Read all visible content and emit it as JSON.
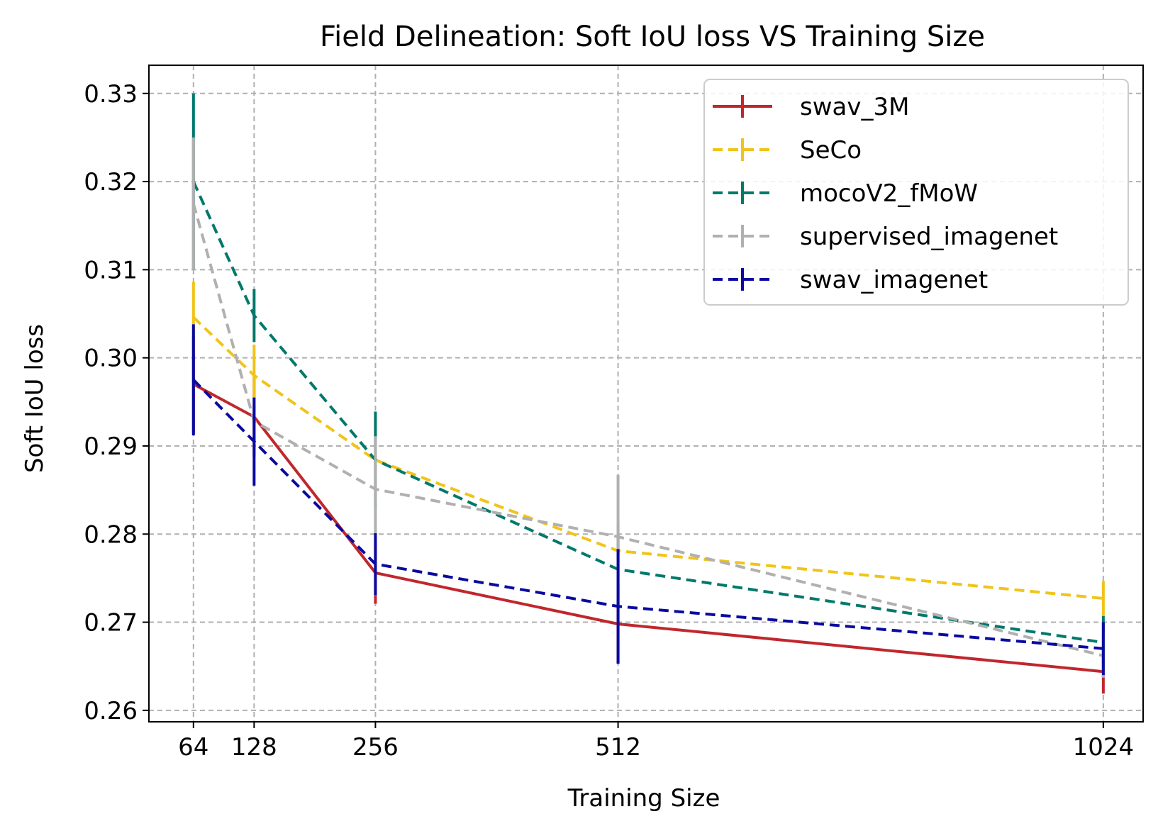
{
  "chart_data": {
    "type": "line",
    "title": "Field Delineation: Soft IoU loss VS Training Size",
    "xlabel": "Training Size",
    "ylabel": "Soft IoU loss",
    "x": [
      64,
      128,
      256,
      512,
      1024
    ],
    "x_tick_labels": [
      "64",
      "128",
      "256",
      "512",
      "1024"
    ],
    "xlim": [
      17,
      1066
    ],
    "ylim": [
      0.2587,
      0.3332
    ],
    "y_ticks": [
      0.26,
      0.27,
      0.28,
      0.29,
      0.3,
      0.31,
      0.32,
      0.33
    ],
    "y_tick_labels": [
      "0.26",
      "0.27",
      "0.28",
      "0.29",
      "0.30",
      "0.31",
      "0.32",
      "0.33"
    ],
    "grid": true,
    "legend_position": "top-right",
    "series": [
      {
        "name": "swav_3M",
        "color": "#c0272d",
        "dashed": false,
        "values": [
          0.297,
          0.2933,
          0.2756,
          0.2698,
          0.2644
        ],
        "errors": [
          0.0055,
          0.0045,
          0.0035,
          0.0045,
          0.0025
        ]
      },
      {
        "name": "SeCo",
        "color": "#f0c419",
        "dashed": true,
        "values": [
          0.3046,
          0.298,
          0.2884,
          0.2781,
          0.2727
        ],
        "errors": [
          0.004,
          0.0035,
          0.0035,
          0.003,
          0.002
        ]
      },
      {
        "name": "mocoV2_fMoW",
        "color": "#00796b",
        "dashed": true,
        "values": [
          0.32,
          0.3048,
          0.2884,
          0.276,
          0.2677
        ],
        "errors": [
          0.01,
          0.003,
          0.0055,
          0.004,
          0.003
        ]
      },
      {
        "name": "supervised_imagenet",
        "color": "#b0b0b0",
        "dashed": true,
        "values": [
          0.3175,
          0.2928,
          0.2851,
          0.2797,
          0.2662
        ],
        "errors": [
          0.0075,
          0.0015,
          0.006,
          0.007,
          0.0025
        ]
      },
      {
        "name": "swav_imagenet",
        "color": "#0a0aa0",
        "dashed": true,
        "values": [
          0.2975,
          0.2905,
          0.2766,
          0.2718,
          0.267
        ],
        "errors": [
          0.0063,
          0.005,
          0.0035,
          0.0065,
          0.003
        ]
      }
    ]
  }
}
